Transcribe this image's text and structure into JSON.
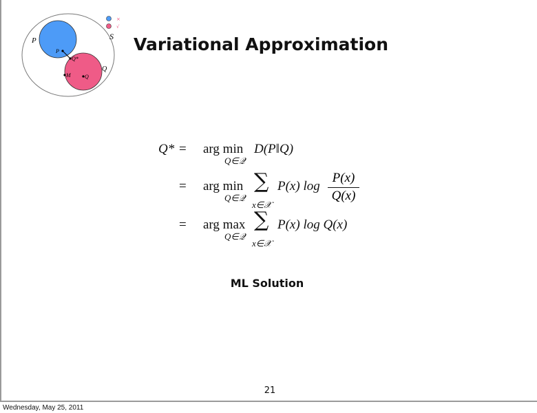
{
  "slide": {
    "title": "Variational Approximation",
    "diagram": {
      "set_labels": {
        "outer": "S",
        "p_set": "P",
        "q_set": "Q"
      },
      "point_labels": {
        "p": "P",
        "q_star": "Q*",
        "m": "M",
        "q": "Q"
      },
      "legend": [
        {
          "color": "#4d9bf7",
          "mark": "×"
        },
        {
          "color": "#ef5b87",
          "mark": "√"
        }
      ],
      "colors": {
        "p_region": "#4d9bf7",
        "q_region": "#ef5b87"
      }
    },
    "equation": {
      "lhs": "Q*",
      "eq": "=",
      "argmin": "arg min",
      "argmax": "arg max",
      "sub_q": "Q∈𝒬",
      "sub_x": "x∈𝒳",
      "line1_rhs": "D(P‖Q)",
      "line2_px": "P(x) log",
      "line2_num": "P(x)",
      "line2_den": "Q(x)",
      "line3_rhs": "P(x) log Q(x)",
      "sum": "∑"
    },
    "caption": "ML Solution",
    "page_number": "21"
  },
  "footer": {
    "date": "Wednesday, May 25, 2011"
  }
}
